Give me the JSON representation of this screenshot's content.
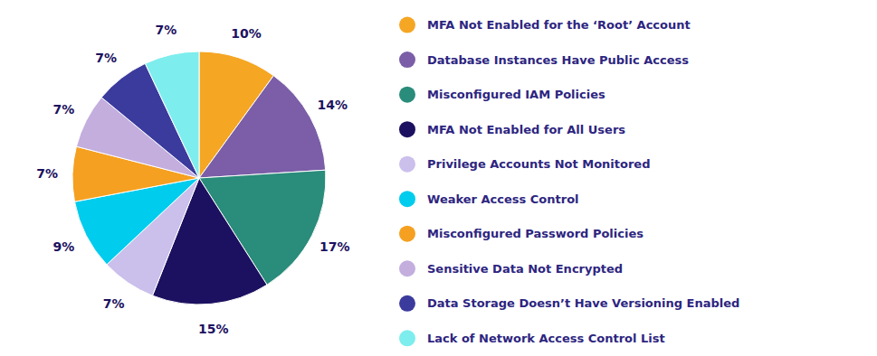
{
  "chart_data": {
    "type": "pie",
    "categories": [
      "MFA Not Enabled for the ‘Root’ Account",
      "Database Instances Have Public Access",
      "Misconfigured IAM Policies",
      "MFA Not Enabled for All Users",
      "Privilege Accounts Not Monitored",
      "Weaker Access Control",
      "Misconfigured Password Policies",
      "Sensitive Data Not Encrypted",
      "Data Storage Doesn’t Have Versioning Enabled",
      "Lack of Network Access Control List"
    ],
    "values": [
      10,
      14,
      17,
      15,
      7,
      9,
      7,
      7,
      7,
      7
    ],
    "value_labels": [
      "10%",
      "14%",
      "17%",
      "15%",
      "7%",
      "9%",
      "7%",
      "7%",
      "7%",
      "7%"
    ],
    "colors": [
      "#F5A623",
      "#7B5EA7",
      "#2A8C7A",
      "#1C1160",
      "#CBBFEC",
      "#00CCEE",
      "#F5A020",
      "#C3AEDE",
      "#3B3B9E",
      "#7EEDEE"
    ],
    "data_labels": true,
    "legend": "right"
  }
}
